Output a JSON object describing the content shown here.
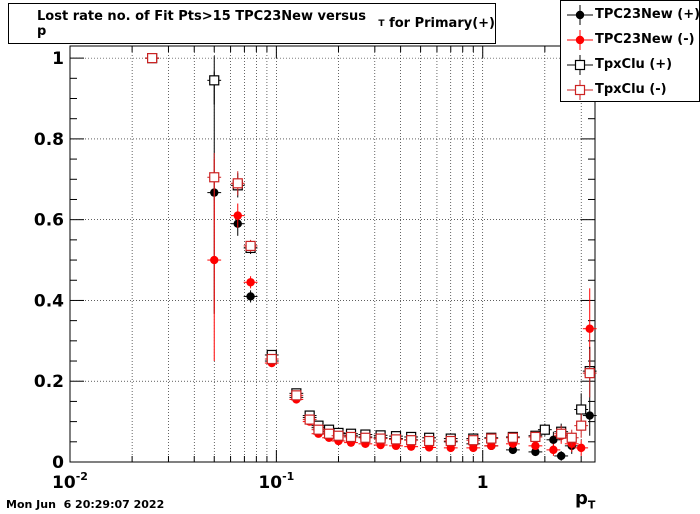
{
  "chart_data": {
    "type": "scatter",
    "title_main": "Lost rate no. of Fit Pts>15 TPC23New versus p",
    "title_sub": "T",
    "title_tail": " for Primary(+)",
    "xlabel_main": "p",
    "xlabel_sub": "T",
    "xscale": "log",
    "xlim": [
      0.01,
      3.5
    ],
    "ylim": [
      0,
      1.03
    ],
    "grid": true,
    "legend_position": "top-right",
    "x_ticks": [
      {
        "value": 0.01,
        "base": "10",
        "exp": "-2"
      },
      {
        "value": 0.1,
        "base": "10",
        "exp": "-1"
      },
      {
        "value": 1,
        "base": "1",
        "exp": ""
      }
    ],
    "y_ticks": [
      {
        "value": 0,
        "label": "0"
      },
      {
        "value": 0.2,
        "label": "0.2"
      },
      {
        "value": 0.4,
        "label": "0.4"
      },
      {
        "value": 0.6,
        "label": "0.6"
      },
      {
        "value": 0.8,
        "label": "0.8"
      },
      {
        "value": 1,
        "label": "1"
      }
    ],
    "series": [
      {
        "name": "TPC23New (+)",
        "marker": "filled-circle",
        "color": "#000000",
        "points": [
          {
            "x": 0.025,
            "y": 1.0,
            "ey": 0.0
          },
          {
            "x": 0.05,
            "y": 0.667,
            "ey": 0.3
          },
          {
            "x": 0.065,
            "y": 0.59,
            "ey": 0.03
          },
          {
            "x": 0.075,
            "y": 0.41,
            "ey": 0.015
          },
          {
            "x": 0.095,
            "y": 0.25,
            "ey": 0.01
          },
          {
            "x": 0.125,
            "y": 0.16,
            "ey": 0.008
          },
          {
            "x": 0.145,
            "y": 0.11,
            "ey": 0.006
          },
          {
            "x": 0.16,
            "y": 0.085,
            "ey": 0.005
          },
          {
            "x": 0.18,
            "y": 0.075,
            "ey": 0.005
          },
          {
            "x": 0.2,
            "y": 0.07,
            "ey": 0.004
          },
          {
            "x": 0.23,
            "y": 0.065,
            "ey": 0.004
          },
          {
            "x": 0.27,
            "y": 0.062,
            "ey": 0.004
          },
          {
            "x": 0.32,
            "y": 0.06,
            "ey": 0.004
          },
          {
            "x": 0.38,
            "y": 0.058,
            "ey": 0.004
          },
          {
            "x": 0.45,
            "y": 0.055,
            "ey": 0.004
          },
          {
            "x": 0.55,
            "y": 0.052,
            "ey": 0.004
          },
          {
            "x": 0.7,
            "y": 0.05,
            "ey": 0.005
          },
          {
            "x": 0.9,
            "y": 0.045,
            "ey": 0.005
          },
          {
            "x": 1.1,
            "y": 0.04,
            "ey": 0.006
          },
          {
            "x": 1.4,
            "y": 0.03,
            "ey": 0.007
          },
          {
            "x": 1.8,
            "y": 0.025,
            "ey": 0.009
          },
          {
            "x": 2.2,
            "y": 0.055,
            "ey": 0.02
          },
          {
            "x": 2.4,
            "y": 0.015,
            "ey": 0.012
          },
          {
            "x": 2.7,
            "y": 0.04,
            "ey": 0.02
          },
          {
            "x": 3.3,
            "y": 0.115,
            "ey": 0.05
          }
        ]
      },
      {
        "name": "TPC23New (-)",
        "marker": "filled-circle",
        "color": "#ff0000",
        "points": [
          {
            "x": 0.025,
            "y": 1.0,
            "ey": 0.0
          },
          {
            "x": 0.05,
            "y": 0.5,
            "ey": 0.25
          },
          {
            "x": 0.065,
            "y": 0.61,
            "ey": 0.03
          },
          {
            "x": 0.075,
            "y": 0.445,
            "ey": 0.015
          },
          {
            "x": 0.095,
            "y": 0.245,
            "ey": 0.01
          },
          {
            "x": 0.125,
            "y": 0.155,
            "ey": 0.008
          },
          {
            "x": 0.145,
            "y": 0.1,
            "ey": 0.006
          },
          {
            "x": 0.16,
            "y": 0.07,
            "ey": 0.005
          },
          {
            "x": 0.18,
            "y": 0.06,
            "ey": 0.005
          },
          {
            "x": 0.2,
            "y": 0.052,
            "ey": 0.004
          },
          {
            "x": 0.23,
            "y": 0.048,
            "ey": 0.004
          },
          {
            "x": 0.27,
            "y": 0.045,
            "ey": 0.004
          },
          {
            "x": 0.32,
            "y": 0.042,
            "ey": 0.004
          },
          {
            "x": 0.38,
            "y": 0.04,
            "ey": 0.004
          },
          {
            "x": 0.45,
            "y": 0.038,
            "ey": 0.004
          },
          {
            "x": 0.55,
            "y": 0.036,
            "ey": 0.004
          },
          {
            "x": 0.7,
            "y": 0.035,
            "ey": 0.005
          },
          {
            "x": 0.9,
            "y": 0.035,
            "ey": 0.005
          },
          {
            "x": 1.1,
            "y": 0.04,
            "ey": 0.006
          },
          {
            "x": 1.4,
            "y": 0.045,
            "ey": 0.007
          },
          {
            "x": 1.8,
            "y": 0.04,
            "ey": 0.009
          },
          {
            "x": 2.2,
            "y": 0.03,
            "ey": 0.015
          },
          {
            "x": 2.4,
            "y": 0.065,
            "ey": 0.02
          },
          {
            "x": 2.7,
            "y": 0.045,
            "ey": 0.02
          },
          {
            "x": 3.0,
            "y": 0.035,
            "ey": 0.02
          },
          {
            "x": 3.3,
            "y": 0.33,
            "ey": 0.1
          }
        ]
      },
      {
        "name": "TpxClu (+)",
        "marker": "open-square",
        "color": "#000000",
        "points": [
          {
            "x": 0.025,
            "y": 1.0,
            "ey": 0.0
          },
          {
            "x": 0.05,
            "y": 0.945,
            "ey": 0.06
          },
          {
            "x": 0.065,
            "y": 0.685,
            "ey": 0.03
          },
          {
            "x": 0.075,
            "y": 0.53,
            "ey": 0.015
          },
          {
            "x": 0.095,
            "y": 0.265,
            "ey": 0.01
          },
          {
            "x": 0.125,
            "y": 0.17,
            "ey": 0.008
          },
          {
            "x": 0.145,
            "y": 0.115,
            "ey": 0.006
          },
          {
            "x": 0.16,
            "y": 0.09,
            "ey": 0.005
          },
          {
            "x": 0.18,
            "y": 0.08,
            "ey": 0.005
          },
          {
            "x": 0.2,
            "y": 0.072,
            "ey": 0.004
          },
          {
            "x": 0.23,
            "y": 0.07,
            "ey": 0.004
          },
          {
            "x": 0.27,
            "y": 0.068,
            "ey": 0.004
          },
          {
            "x": 0.32,
            "y": 0.066,
            "ey": 0.004
          },
          {
            "x": 0.38,
            "y": 0.064,
            "ey": 0.004
          },
          {
            "x": 0.45,
            "y": 0.062,
            "ey": 0.004
          },
          {
            "x": 0.55,
            "y": 0.06,
            "ey": 0.004
          },
          {
            "x": 0.7,
            "y": 0.058,
            "ey": 0.005
          },
          {
            "x": 0.9,
            "y": 0.058,
            "ey": 0.005
          },
          {
            "x": 1.1,
            "y": 0.06,
            "ey": 0.006
          },
          {
            "x": 1.4,
            "y": 0.062,
            "ey": 0.007
          },
          {
            "x": 1.8,
            "y": 0.065,
            "ey": 0.009
          },
          {
            "x": 2.0,
            "y": 0.08,
            "ey": 0.015
          },
          {
            "x": 2.4,
            "y": 0.075,
            "ey": 0.02
          },
          {
            "x": 3.0,
            "y": 0.13,
            "ey": 0.04
          },
          {
            "x": 3.3,
            "y": 0.225,
            "ey": 0.06
          }
        ]
      },
      {
        "name": "TpxClu (-)",
        "marker": "open-square",
        "color": "#cc2222",
        "points": [
          {
            "x": 0.025,
            "y": 1.0,
            "ey": 0.0
          },
          {
            "x": 0.05,
            "y": 0.705,
            "ey": 0.06
          },
          {
            "x": 0.065,
            "y": 0.69,
            "ey": 0.03
          },
          {
            "x": 0.075,
            "y": 0.535,
            "ey": 0.015
          },
          {
            "x": 0.095,
            "y": 0.255,
            "ey": 0.01
          },
          {
            "x": 0.125,
            "y": 0.165,
            "ey": 0.008
          },
          {
            "x": 0.145,
            "y": 0.105,
            "ey": 0.006
          },
          {
            "x": 0.16,
            "y": 0.08,
            "ey": 0.005
          },
          {
            "x": 0.18,
            "y": 0.07,
            "ey": 0.005
          },
          {
            "x": 0.2,
            "y": 0.065,
            "ey": 0.004
          },
          {
            "x": 0.23,
            "y": 0.062,
            "ey": 0.004
          },
          {
            "x": 0.27,
            "y": 0.06,
            "ey": 0.004
          },
          {
            "x": 0.32,
            "y": 0.058,
            "ey": 0.004
          },
          {
            "x": 0.38,
            "y": 0.056,
            "ey": 0.004
          },
          {
            "x": 0.45,
            "y": 0.054,
            "ey": 0.004
          },
          {
            "x": 0.55,
            "y": 0.052,
            "ey": 0.004
          },
          {
            "x": 0.7,
            "y": 0.052,
            "ey": 0.005
          },
          {
            "x": 0.9,
            "y": 0.054,
            "ey": 0.005
          },
          {
            "x": 1.1,
            "y": 0.058,
            "ey": 0.006
          },
          {
            "x": 1.4,
            "y": 0.06,
            "ey": 0.007
          },
          {
            "x": 1.8,
            "y": 0.062,
            "ey": 0.009
          },
          {
            "x": 2.4,
            "y": 0.07,
            "ey": 0.02
          },
          {
            "x": 2.7,
            "y": 0.06,
            "ey": 0.02
          },
          {
            "x": 3.0,
            "y": 0.09,
            "ey": 0.03
          },
          {
            "x": 3.3,
            "y": 0.22,
            "ey": 0.06
          }
        ]
      }
    ]
  },
  "footer": {
    "timestamp": "Mon Jun  6 20:29:07 2022"
  }
}
